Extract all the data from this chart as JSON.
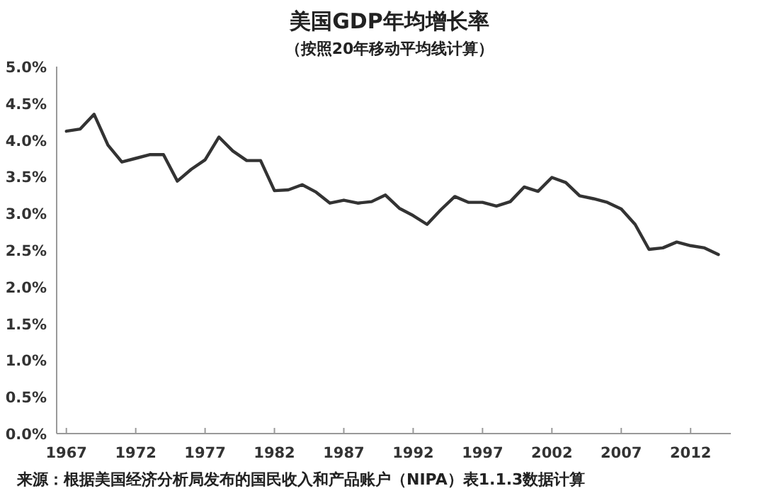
{
  "chart_data": {
    "type": "line",
    "title": "美国GDP年均增长率",
    "subtitle": "（按照20年移动平均线计算）",
    "annotations": [
      "来源：根据美国经济分析局发布的国民收入和产品账户（NIPA）表1.1.3数据计算"
    ],
    "x": [
      1967,
      1968,
      1969,
      1970,
      1971,
      1972,
      1973,
      1974,
      1975,
      1976,
      1977,
      1978,
      1979,
      1980,
      1981,
      1982,
      1983,
      1984,
      1985,
      1986,
      1987,
      1988,
      1989,
      1990,
      1991,
      1992,
      1993,
      1994,
      1995,
      1996,
      1997,
      1998,
      1999,
      2000,
      2001,
      2002,
      2003,
      2004,
      2005,
      2006,
      2007,
      2008,
      2009,
      2010,
      2011,
      2012,
      2013,
      2014
    ],
    "series": [
      {
        "color": "#333333",
        "values": [
          4.12,
          4.15,
          4.35,
          3.93,
          3.7,
          3.75,
          3.8,
          3.8,
          3.44,
          3.6,
          3.73,
          4.04,
          3.85,
          3.72,
          3.72,
          3.31,
          3.32,
          3.39,
          3.29,
          3.14,
          3.18,
          3.14,
          3.16,
          3.25,
          3.07,
          2.97,
          2.85,
          3.05,
          3.23,
          3.15,
          3.15,
          3.1,
          3.16,
          3.36,
          3.3,
          3.49,
          3.42,
          3.24,
          3.2,
          3.15,
          3.06,
          2.85,
          2.51,
          2.53,
          2.61,
          2.56,
          2.53,
          2.44
        ]
      }
    ],
    "xlim": [
      1966.3,
      2014.9
    ],
    "xticks": [
      1967,
      1972,
      1977,
      1982,
      1987,
      1992,
      1997,
      2002,
      2007,
      2012
    ],
    "ylim": [
      0,
      5
    ],
    "yticks": [
      {
        "value": 0,
        "label": "0.0%"
      },
      {
        "value": 0.5,
        "label": "0.5%"
      },
      {
        "value": 1,
        "label": "1.0%"
      },
      {
        "value": 1.5,
        "label": "1.5%"
      },
      {
        "value": 2,
        "label": "2.0%"
      },
      {
        "value": 2.5,
        "label": "2.5%"
      },
      {
        "value": 3,
        "label": "3.0%"
      },
      {
        "value": 3.5,
        "label": "3.5%"
      },
      {
        "value": 4,
        "label": "4.0%"
      },
      {
        "value": 4.5,
        "label": "4.5%"
      },
      {
        "value": 5,
        "label": "5.0%"
      }
    ],
    "marker": "none",
    "line_style": "solid"
  }
}
